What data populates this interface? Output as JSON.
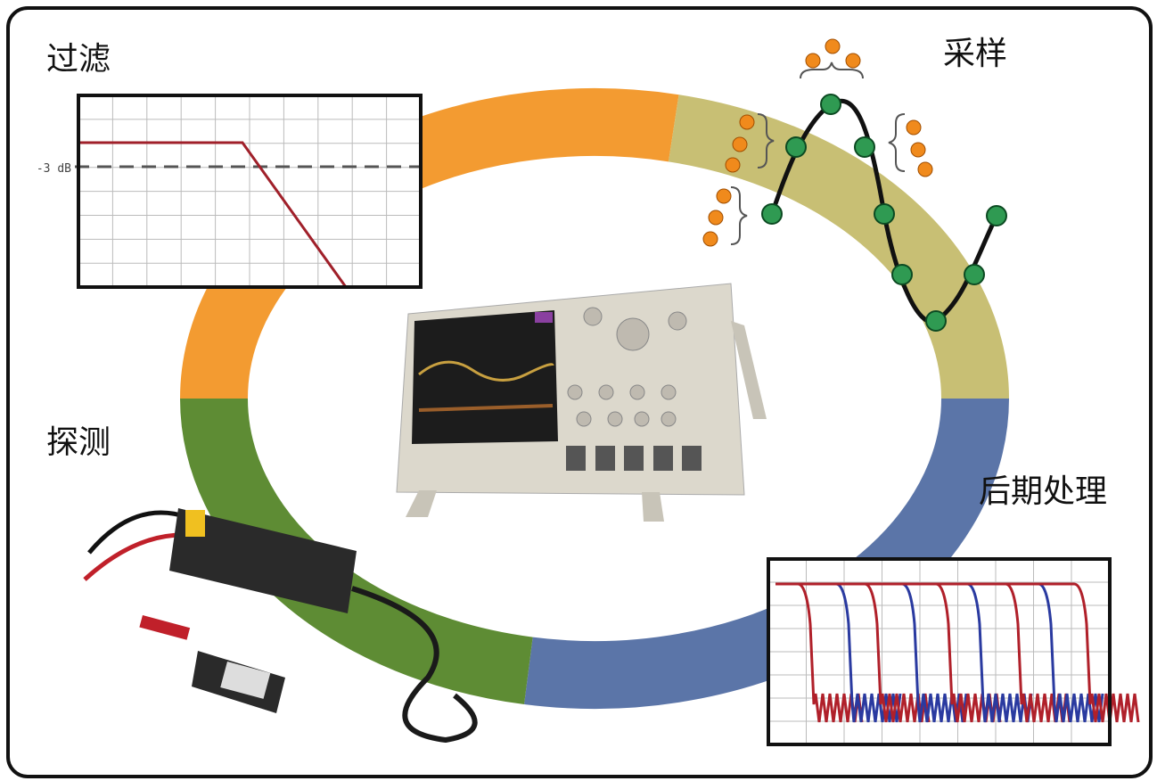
{
  "labels": {
    "filter": "过滤",
    "sampling": "采样",
    "probing": "探测",
    "post_processing": "后期处理"
  },
  "filter_chart": {
    "level_label": "-3 dB"
  }
}
